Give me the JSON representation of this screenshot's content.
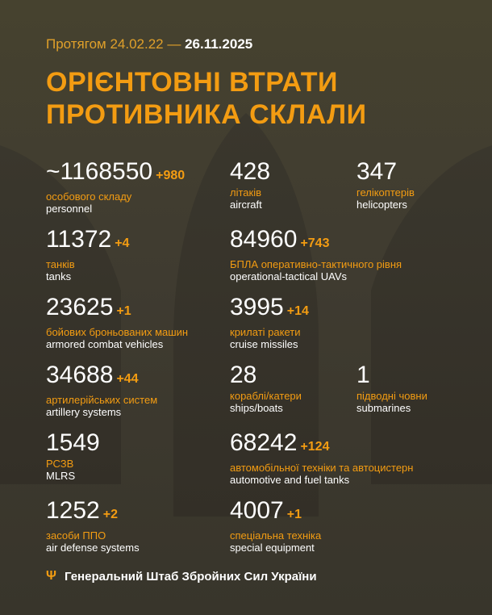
{
  "header": {
    "period_prefix": "Протягом 24.02.22 —",
    "date": "26.11.2025",
    "title_line1": "ОРІЄНТОВНІ ВТРАТИ",
    "title_line2": "ПРОТИВНИКА СКЛАЛИ"
  },
  "stats": [
    {
      "value": "~1168550",
      "delta": "+980",
      "ua": "особового складу",
      "en": "personnel"
    },
    {
      "value": "428",
      "delta": "",
      "ua": "літаків",
      "en": "aircraft"
    },
    {
      "value": "347",
      "delta": "",
      "ua": "гелікоптерів",
      "en": "helicopters"
    },
    {
      "value": "11372",
      "delta": "+4",
      "ua": "танків",
      "en": "tanks"
    },
    {
      "value": "84960",
      "delta": "+743",
      "ua": "БПЛА оперативно-тактичного рівня",
      "en": "operational-tactical UAVs"
    },
    {
      "value": "23625",
      "delta": "+1",
      "ua": "бойових броньованих машин",
      "en": "armored combat vehicles"
    },
    {
      "value": "3995",
      "delta": "+14",
      "ua": "крилаті ракети",
      "en": "cruise missiles"
    },
    {
      "value": "34688",
      "delta": "+44",
      "ua": "артилерійських систем",
      "en": "artillery systems"
    },
    {
      "value": "28",
      "delta": "",
      "ua": "кораблі/катери",
      "en": "ships/boats"
    },
    {
      "value": "1",
      "delta": "",
      "ua": "підводні човни",
      "en": "submarines"
    },
    {
      "value": "1549",
      "delta": "",
      "ua": "РСЗВ",
      "en": "MLRS"
    },
    {
      "value": "68242",
      "delta": "+124",
      "ua": "автомобільної техніки та автоцистерн",
      "en": "automotive and fuel tanks"
    },
    {
      "value": "1252",
      "delta": "+2",
      "ua": "засоби ППО",
      "en": "air defense systems"
    },
    {
      "value": "4007",
      "delta": "+1",
      "ua": "спеціальна техніка",
      "en": "special equipment"
    }
  ],
  "footer": {
    "icon": "trident-icon",
    "text": "Генеральний Штаб Збройних Сил України"
  },
  "colors": {
    "background": "#3f3b30",
    "accent": "#f39c12",
    "text": "#ffffff"
  }
}
